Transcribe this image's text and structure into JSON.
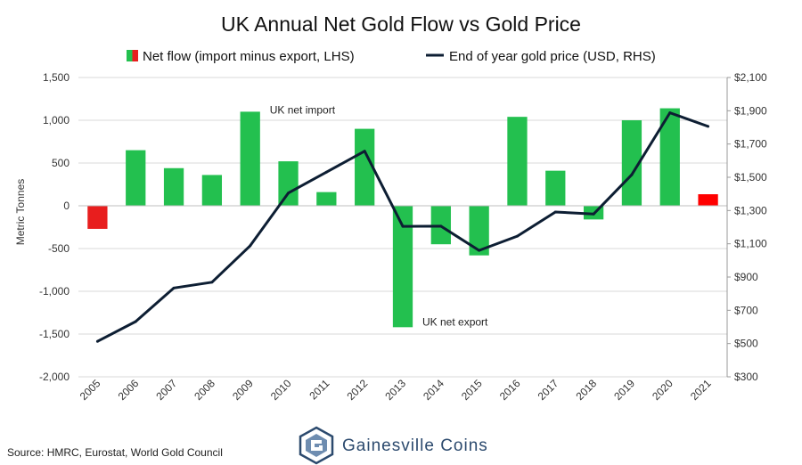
{
  "chart_data": {
    "type": "bar+line",
    "title": "UK Annual Net Gold Flow vs Gold Price",
    "categories": [
      "2005",
      "2006",
      "2007",
      "2008",
      "2009",
      "2010",
      "2011",
      "2012",
      "2013",
      "2014",
      "2015",
      "2016",
      "2017",
      "2018",
      "2019",
      "2020",
      "2021"
    ],
    "series": [
      {
        "name": "Net flow (import minus export, LHS)",
        "type": "bar",
        "axis": "left",
        "values": [
          -270,
          650,
          440,
          360,
          1100,
          520,
          160,
          900,
          -1420,
          -450,
          -580,
          1040,
          410,
          -160,
          1000,
          1140,
          135
        ],
        "colors": {
          "positive": "#23c04f",
          "negative": "#e81e1e",
          "highlight": "#ff0000"
        },
        "highlight_index": [
          0,
          16
        ]
      },
      {
        "name": "End of year gold price (USD, RHS)",
        "type": "line",
        "axis": "right",
        "color": "#0d1e33",
        "values": [
          513,
          632,
          834,
          869,
          1088,
          1405,
          1531,
          1657,
          1205,
          1206,
          1060,
          1146,
          1291,
          1279,
          1515,
          1888,
          1806
        ]
      }
    ],
    "yleft": {
      "label": "Metric Tonnes",
      "range": [
        -2000,
        1500
      ],
      "ticks": [
        1500,
        1000,
        500,
        0,
        -500,
        -1000,
        -1500,
        -2000
      ],
      "tick_labels": [
        "1,500",
        "1,000",
        "500",
        "0",
        "-500",
        "-1,000",
        "-1,500",
        "-2,000"
      ]
    },
    "yright": {
      "range": [
        300,
        2100
      ],
      "ticks": [
        2100,
        1900,
        1700,
        1500,
        1300,
        1100,
        900,
        700,
        500,
        300
      ],
      "tick_labels": [
        "$2,100",
        "$1,900",
        "$1,700",
        "$1,500",
        "$1,300",
        "$1,100",
        "$900",
        "$700",
        "$500",
        "$300"
      ]
    },
    "legend": {
      "position": "top",
      "bar_label": "Net flow (import minus export, LHS)",
      "line_label": "End of year gold price (USD, RHS)"
    },
    "annotations": [
      {
        "text": "UK net import",
        "anchor": "2009"
      },
      {
        "text": "UK net export",
        "anchor": "2013"
      }
    ]
  },
  "footer": {
    "source": "Source: HMRC, Eurostat, World Gold Council",
    "brand": "Gainesville Coins"
  },
  "colors": {
    "grid": "#d9d9d9",
    "axis": "#999999",
    "brand": "#2c4a6e"
  }
}
